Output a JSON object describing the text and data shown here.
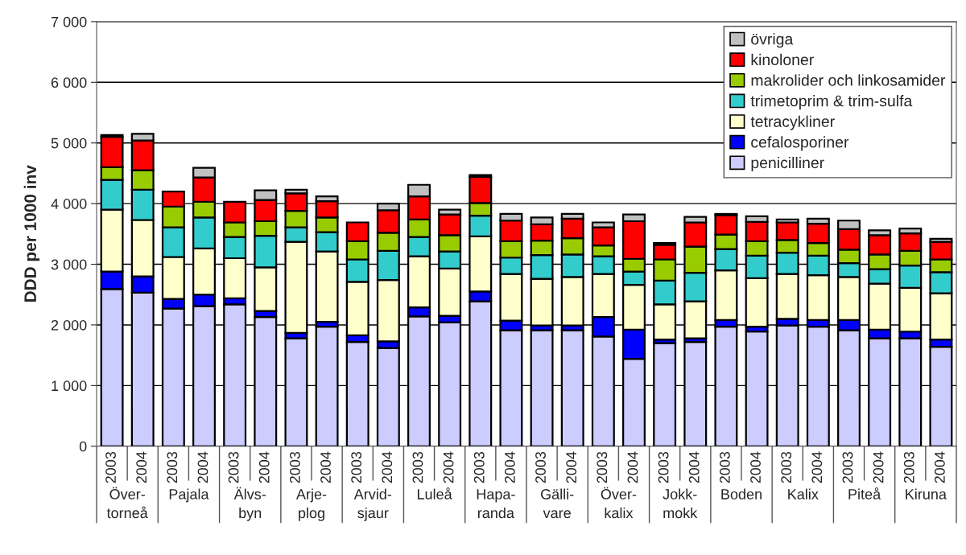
{
  "chart_data": {
    "type": "bar",
    "stacked": true,
    "ylabel": "DDD per 1000 inv",
    "categories": [
      "2003",
      "2004",
      "2003",
      "2004",
      "2003",
      "2004",
      "2003",
      "2004",
      "2003",
      "2004",
      "2003",
      "2004",
      "2003",
      "2004",
      "2003",
      "2004",
      "2003",
      "2004",
      "2003",
      "2004",
      "2003",
      "2004",
      "2003",
      "2004",
      "2003",
      "2004",
      "2003",
      "2004"
    ],
    "annotations": [
      "Över-\ntorneå",
      "Pajala",
      "Älvs-\nbyn",
      "Arje-\nplog",
      "Arvid-\nsjaur",
      "Luleå",
      "Hapa-\nranda",
      "Gälli-\nvare",
      "Över-\nkalix",
      "Jokk-\nmokk",
      "Boden",
      "Kalix",
      "Piteå",
      "Kiruna"
    ],
    "series": [
      {
        "name": "penicilliner",
        "color": "#ccccff",
        "values": [
          2590,
          2530,
          2270,
          2310,
          2340,
          2130,
          1780,
          1970,
          1720,
          1620,
          2140,
          2040,
          2390,
          1910,
          1910,
          1910,
          1810,
          1440,
          1700,
          1720,
          1970,
          1890,
          1990,
          1970,
          1910,
          1780,
          1780,
          1640
        ]
      },
      {
        "name": "cefalosporiner",
        "color": "#0000ff",
        "values": [
          290,
          270,
          160,
          190,
          100,
          100,
          90,
          80,
          110,
          110,
          150,
          110,
          160,
          160,
          80,
          80,
          320,
          480,
          60,
          60,
          110,
          80,
          110,
          110,
          170,
          140,
          110,
          120
        ]
      },
      {
        "name": "tetracykliner",
        "color": "#ffffcc",
        "values": [
          1020,
          930,
          690,
          760,
          660,
          720,
          1500,
          1160,
          880,
          1010,
          840,
          780,
          910,
          770,
          770,
          800,
          710,
          740,
          580,
          610,
          820,
          800,
          740,
          740,
          710,
          760,
          720,
          760
        ]
      },
      {
        "name": "trimetoprim & trim-sulfa",
        "color": "#33cccc",
        "values": [
          490,
          500,
          490,
          510,
          350,
          520,
          240,
          320,
          370,
          480,
          320,
          280,
          340,
          270,
          390,
          370,
          290,
          220,
          390,
          470,
          350,
          370,
          350,
          320,
          230,
          240,
          370,
          350
        ]
      },
      {
        "name": "makrolider och linkosamider",
        "color": "#99cc00",
        "values": [
          210,
          320,
          340,
          260,
          240,
          240,
          270,
          240,
          300,
          300,
          290,
          270,
          210,
          270,
          240,
          270,
          180,
          210,
          350,
          430,
          240,
          240,
          210,
          210,
          220,
          240,
          240,
          210
        ]
      },
      {
        "name": "kinoloner",
        "color": "#ff0000",
        "values": [
          500,
          490,
          250,
          400,
          340,
          350,
          290,
          270,
          310,
          370,
          380,
          340,
          430,
          340,
          270,
          320,
          300,
          620,
          240,
          400,
          320,
          320,
          290,
          320,
          340,
          320,
          290,
          290
        ]
      },
      {
        "name": "övriga",
        "color": "#c0c0c0",
        "values": [
          30,
          110,
          null,
          160,
          null,
          160,
          60,
          80,
          null,
          110,
          190,
          80,
          30,
          110,
          110,
          80,
          80,
          110,
          30,
          90,
          20,
          90,
          50,
          80,
          140,
          80,
          80,
          50
        ]
      }
    ],
    "ylim": [
      0,
      7000
    ],
    "yticks": [
      {
        "value": 0,
        "label": "0"
      },
      {
        "value": 1000,
        "label": "1 000"
      },
      {
        "value": 2000,
        "label": "2 000"
      },
      {
        "value": 3000,
        "label": "3 000"
      },
      {
        "value": 4000,
        "label": "4 000"
      },
      {
        "value": 5000,
        "label": "5 000"
      },
      {
        "value": 6000,
        "label": "6 000"
      },
      {
        "value": 7000,
        "label": "7 000"
      }
    ],
    "grid": "y",
    "legend": "top right"
  }
}
